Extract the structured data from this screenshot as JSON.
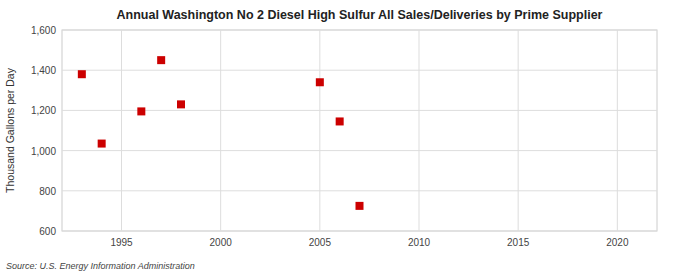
{
  "chart_data": {
    "type": "scatter",
    "title": "Annual Washington No 2 Diesel High Sulfur All Sales/Deliveries by Prime Supplier",
    "ylabel": "Thousand Gallons per Day",
    "source": "Source: U.S. Energy Information Administration",
    "x": [
      1993,
      1994,
      1996,
      1997,
      1998,
      2005,
      2006,
      2007
    ],
    "values": [
      1380,
      1035,
      1195,
      1450,
      1230,
      1340,
      1145,
      725
    ],
    "color": "#cc0000",
    "marker": "square",
    "xlim": [
      1992,
      2022
    ],
    "ylim": [
      600,
      1600
    ],
    "xticks": [
      1995,
      2000,
      2005,
      2010,
      2015,
      2020
    ],
    "yticks": [
      600,
      800,
      {
        "value": 1000,
        "label": "1,000"
      },
      {
        "value": 1200,
        "label": "1,200"
      },
      {
        "value": 1400,
        "label": "1,400"
      },
      {
        "value": 1600,
        "label": "1,600"
      }
    ],
    "grid": true
  }
}
